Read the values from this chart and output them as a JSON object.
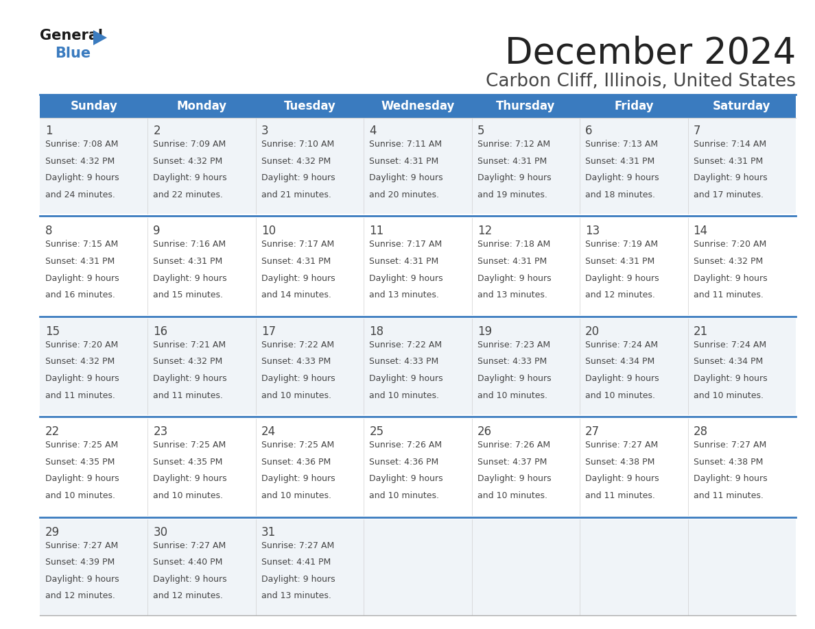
{
  "title": "December 2024",
  "subtitle": "Carbon Cliff, Illinois, United States",
  "header_color": "#3a7bbf",
  "header_text_color": "#ffffff",
  "days_of_week": [
    "Sunday",
    "Monday",
    "Tuesday",
    "Wednesday",
    "Thursday",
    "Friday",
    "Saturday"
  ],
  "cell_bg_light": "#f0f4f8",
  "cell_bg_white": "#ffffff",
  "separator_color": "#3a7bbf",
  "text_color": "#444444",
  "date_color": "#444444",
  "calendar_data": [
    {
      "day": 1,
      "sunrise": "7:08 AM",
      "sunset": "4:32 PM",
      "daylight": "9 hours and 24 minutes"
    },
    {
      "day": 2,
      "sunrise": "7:09 AM",
      "sunset": "4:32 PM",
      "daylight": "9 hours and 22 minutes"
    },
    {
      "day": 3,
      "sunrise": "7:10 AM",
      "sunset": "4:32 PM",
      "daylight": "9 hours and 21 minutes"
    },
    {
      "day": 4,
      "sunrise": "7:11 AM",
      "sunset": "4:31 PM",
      "daylight": "9 hours and 20 minutes"
    },
    {
      "day": 5,
      "sunrise": "7:12 AM",
      "sunset": "4:31 PM",
      "daylight": "9 hours and 19 minutes"
    },
    {
      "day": 6,
      "sunrise": "7:13 AM",
      "sunset": "4:31 PM",
      "daylight": "9 hours and 18 minutes"
    },
    {
      "day": 7,
      "sunrise": "7:14 AM",
      "sunset": "4:31 PM",
      "daylight": "9 hours and 17 minutes"
    },
    {
      "day": 8,
      "sunrise": "7:15 AM",
      "sunset": "4:31 PM",
      "daylight": "9 hours and 16 minutes"
    },
    {
      "day": 9,
      "sunrise": "7:16 AM",
      "sunset": "4:31 PM",
      "daylight": "9 hours and 15 minutes"
    },
    {
      "day": 10,
      "sunrise": "7:17 AM",
      "sunset": "4:31 PM",
      "daylight": "9 hours and 14 minutes"
    },
    {
      "day": 11,
      "sunrise": "7:17 AM",
      "sunset": "4:31 PM",
      "daylight": "9 hours and 13 minutes"
    },
    {
      "day": 12,
      "sunrise": "7:18 AM",
      "sunset": "4:31 PM",
      "daylight": "9 hours and 13 minutes"
    },
    {
      "day": 13,
      "sunrise": "7:19 AM",
      "sunset": "4:31 PM",
      "daylight": "9 hours and 12 minutes"
    },
    {
      "day": 14,
      "sunrise": "7:20 AM",
      "sunset": "4:32 PM",
      "daylight": "9 hours and 11 minutes"
    },
    {
      "day": 15,
      "sunrise": "7:20 AM",
      "sunset": "4:32 PM",
      "daylight": "9 hours and 11 minutes"
    },
    {
      "day": 16,
      "sunrise": "7:21 AM",
      "sunset": "4:32 PM",
      "daylight": "9 hours and 11 minutes"
    },
    {
      "day": 17,
      "sunrise": "7:22 AM",
      "sunset": "4:33 PM",
      "daylight": "9 hours and 10 minutes"
    },
    {
      "day": 18,
      "sunrise": "7:22 AM",
      "sunset": "4:33 PM",
      "daylight": "9 hours and 10 minutes"
    },
    {
      "day": 19,
      "sunrise": "7:23 AM",
      "sunset": "4:33 PM",
      "daylight": "9 hours and 10 minutes"
    },
    {
      "day": 20,
      "sunrise": "7:24 AM",
      "sunset": "4:34 PM",
      "daylight": "9 hours and 10 minutes"
    },
    {
      "day": 21,
      "sunrise": "7:24 AM",
      "sunset": "4:34 PM",
      "daylight": "9 hours and 10 minutes"
    },
    {
      "day": 22,
      "sunrise": "7:25 AM",
      "sunset": "4:35 PM",
      "daylight": "9 hours and 10 minutes"
    },
    {
      "day": 23,
      "sunrise": "7:25 AM",
      "sunset": "4:35 PM",
      "daylight": "9 hours and 10 minutes"
    },
    {
      "day": 24,
      "sunrise": "7:25 AM",
      "sunset": "4:36 PM",
      "daylight": "9 hours and 10 minutes"
    },
    {
      "day": 25,
      "sunrise": "7:26 AM",
      "sunset": "4:36 PM",
      "daylight": "9 hours and 10 minutes"
    },
    {
      "day": 26,
      "sunrise": "7:26 AM",
      "sunset": "4:37 PM",
      "daylight": "9 hours and 10 minutes"
    },
    {
      "day": 27,
      "sunrise": "7:27 AM",
      "sunset": "4:38 PM",
      "daylight": "9 hours and 11 minutes"
    },
    {
      "day": 28,
      "sunrise": "7:27 AM",
      "sunset": "4:38 PM",
      "daylight": "9 hours and 11 minutes"
    },
    {
      "day": 29,
      "sunrise": "7:27 AM",
      "sunset": "4:39 PM",
      "daylight": "9 hours and 12 minutes"
    },
    {
      "day": 30,
      "sunrise": "7:27 AM",
      "sunset": "4:40 PM",
      "daylight": "9 hours and 12 minutes"
    },
    {
      "day": 31,
      "sunrise": "7:27 AM",
      "sunset": "4:41 PM",
      "daylight": "9 hours and 13 minutes"
    }
  ],
  "title_fontsize": 38,
  "subtitle_fontsize": 19,
  "header_fontsize": 12,
  "day_num_fontsize": 12,
  "cell_text_fontsize": 9,
  "logo_general_fontsize": 15,
  "logo_blue_fontsize": 15
}
